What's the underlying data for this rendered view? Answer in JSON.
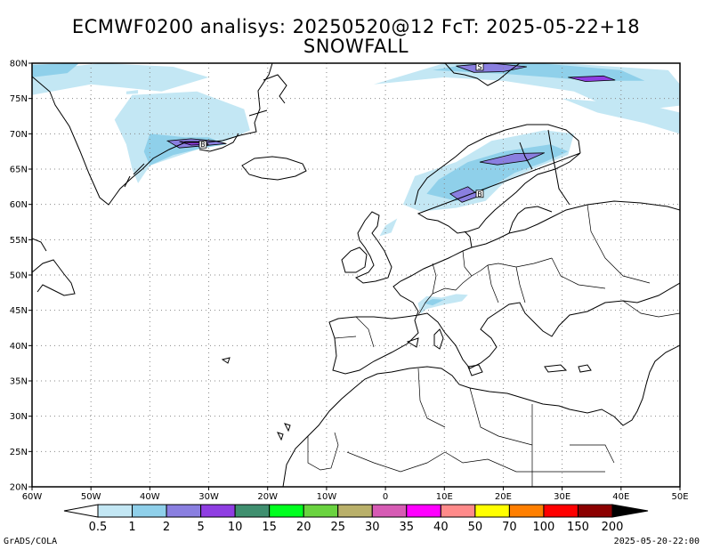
{
  "title_line1": "ECMWF0200 analisys: 20250520@12 FcT: 2025-05-22+18",
  "title_line2": "SNOWFALL",
  "footer_left": "GrADS/COLA",
  "footer_right": "2025-05-20-22:00",
  "map": {
    "lon_range": [
      -60,
      50
    ],
    "lat_range": [
      20,
      80
    ],
    "lat_ticks": [
      {
        "value": 80,
        "label": "80N"
      },
      {
        "value": 75,
        "label": "75N"
      },
      {
        "value": 70,
        "label": "70N"
      },
      {
        "value": 65,
        "label": "65N"
      },
      {
        "value": 60,
        "label": "60N"
      },
      {
        "value": 55,
        "label": "55N"
      },
      {
        "value": 50,
        "label": "50N"
      },
      {
        "value": 45,
        "label": "45N"
      },
      {
        "value": 40,
        "label": "40N"
      },
      {
        "value": 35,
        "label": "35N"
      },
      {
        "value": 30,
        "label": "30N"
      },
      {
        "value": 25,
        "label": "25N"
      },
      {
        "value": 20,
        "label": "20N"
      }
    ],
    "lon_ticks": [
      {
        "value": -60,
        "label": "60W"
      },
      {
        "value": -50,
        "label": "50W"
      },
      {
        "value": -40,
        "label": "40W"
      },
      {
        "value": -30,
        "label": "30W"
      },
      {
        "value": -20,
        "label": "20W"
      },
      {
        "value": -10,
        "label": "10W"
      },
      {
        "value": 0,
        "label": "0"
      },
      {
        "value": 10,
        "label": "10E"
      },
      {
        "value": 20,
        "label": "20E"
      },
      {
        "value": 30,
        "label": "30E"
      },
      {
        "value": 40,
        "label": "40E"
      },
      {
        "value": 50,
        "label": "50E"
      }
    ],
    "grid_style": "dotted",
    "snowfall_areas": [
      {
        "region": "greenland",
        "level": 1,
        "polygon": [
          [
            -60,
            79
          ],
          [
            -48,
            80
          ],
          [
            -36,
            79.5
          ],
          [
            -30,
            78
          ],
          [
            -38,
            76
          ],
          [
            -50,
            77
          ],
          [
            -60,
            75.5
          ]
        ]
      },
      {
        "region": "greenland",
        "level": 2,
        "polygon": [
          [
            -60,
            79.8
          ],
          [
            -52,
            80
          ],
          [
            -54,
            78.6
          ],
          [
            -60,
            78
          ]
        ]
      },
      {
        "region": "greenland",
        "level": 1,
        "polygon": [
          [
            -43,
            75.5
          ],
          [
            -32,
            76
          ],
          [
            -24,
            73.5
          ],
          [
            -23,
            70.5
          ],
          [
            -27,
            69
          ],
          [
            -33,
            67.5
          ],
          [
            -40,
            65.5
          ],
          [
            -42,
            63
          ],
          [
            -43,
            65
          ],
          [
            -44,
            68.5
          ],
          [
            -46,
            72
          ]
        ]
      },
      {
        "region": "greenland",
        "level": 2,
        "polygon": [
          [
            -40,
            70
          ],
          [
            -34,
            69.5
          ],
          [
            -30,
            69.5
          ],
          [
            -27,
            68.5
          ],
          [
            -31,
            68
          ],
          [
            -36,
            67
          ],
          [
            -40,
            65.5
          ],
          [
            -41,
            67.5
          ]
        ]
      },
      {
        "region": "greenland",
        "level": 3,
        "polygon": [
          [
            -37,
            69
          ],
          [
            -33,
            69.3
          ],
          [
            -29,
            69
          ],
          [
            -27,
            68.6
          ],
          [
            -31,
            68.3
          ],
          [
            -35,
            68
          ]
        ]
      },
      {
        "region": "greenland",
        "level": 4,
        "polygon": [
          [
            -35,
            68.9
          ],
          [
            -31,
            68.9
          ],
          [
            -30,
            68.5
          ],
          [
            -33,
            68.4
          ]
        ]
      },
      {
        "region": "greenland",
        "level": 1,
        "polygon": [
          [
            -44,
            76
          ],
          [
            -42,
            76.2
          ],
          [
            -42,
            75.7
          ],
          [
            -44,
            75.6
          ]
        ]
      },
      {
        "region": "svalbard",
        "level": 1,
        "polygon": [
          [
            -2,
            77
          ],
          [
            10,
            80
          ],
          [
            30,
            80
          ],
          [
            48,
            79
          ],
          [
            50,
            77
          ],
          [
            50,
            74
          ],
          [
            40,
            73
          ],
          [
            32,
            76
          ],
          [
            20,
            77.5
          ],
          [
            10,
            78
          ]
        ]
      },
      {
        "region": "svalbard",
        "level": 2,
        "polygon": [
          [
            8,
            79
          ],
          [
            15,
            80
          ],
          [
            26,
            80
          ],
          [
            40,
            79
          ],
          [
            44,
            77.5
          ],
          [
            35,
            77.5
          ],
          [
            28,
            78
          ],
          [
            20,
            78.5
          ]
        ]
      },
      {
        "region": "svalbard",
        "level": 3,
        "polygon": [
          [
            12,
            79.6
          ],
          [
            18,
            80
          ],
          [
            24,
            79.5
          ],
          [
            20,
            78.8
          ],
          [
            15,
            78.7
          ]
        ]
      },
      {
        "region": "svalbard",
        "level": 4,
        "polygon": [
          [
            31,
            78
          ],
          [
            37,
            78.2
          ],
          [
            39,
            77.6
          ],
          [
            34,
            77.4
          ]
        ]
      },
      {
        "region": "barents",
        "level": 1,
        "polygon": [
          [
            30,
            75
          ],
          [
            45,
            74
          ],
          [
            50,
            73
          ],
          [
            50,
            70
          ],
          [
            44,
            71.5
          ],
          [
            36,
            73
          ]
        ]
      },
      {
        "region": "scandinavia",
        "level": 1,
        "polygon": [
          [
            4,
            62
          ],
          [
            5,
            64
          ],
          [
            12,
            66
          ],
          [
            18,
            69
          ],
          [
            27,
            70.5
          ],
          [
            32,
            70
          ],
          [
            31,
            67
          ],
          [
            25,
            65
          ],
          [
            20,
            63
          ],
          [
            17,
            60.5
          ],
          [
            12,
            59.5
          ],
          [
            6,
            59
          ],
          [
            3,
            60
          ]
        ]
      },
      {
        "region": "scandinavia",
        "level": 2,
        "polygon": [
          [
            7,
            61.5
          ],
          [
            9,
            63.5
          ],
          [
            14,
            66
          ],
          [
            20,
            67.5
          ],
          [
            28,
            68.5
          ],
          [
            31,
            67.5
          ],
          [
            27,
            66
          ],
          [
            22,
            64.5
          ],
          [
            17,
            62
          ],
          [
            12,
            60.5
          ]
        ]
      },
      {
        "region": "scandinavia",
        "level": 3,
        "polygon": [
          [
            11,
            61.5
          ],
          [
            14,
            62.5
          ],
          [
            16,
            61.2
          ],
          [
            13,
            60.3
          ]
        ]
      },
      {
        "region": "scandinavia",
        "level": 3,
        "polygon": [
          [
            16,
            66
          ],
          [
            22,
            67.2
          ],
          [
            27,
            67.3
          ],
          [
            24,
            66.2
          ],
          [
            19,
            65.6
          ]
        ]
      },
      {
        "region": "scandinavia",
        "level": 1,
        "polygon": [
          [
            0,
            57
          ],
          [
            2,
            58
          ],
          [
            1,
            56
          ],
          [
            -1,
            55.5
          ]
        ]
      },
      {
        "region": "alps",
        "level": 1,
        "polygon": [
          [
            5.5,
            46
          ],
          [
            7,
            47
          ],
          [
            9.5,
            46.8
          ],
          [
            12,
            47.3
          ],
          [
            14,
            47.2
          ],
          [
            13,
            46.3
          ],
          [
            10,
            45.8
          ],
          [
            7,
            45.2
          ],
          [
            6,
            44.5
          ]
        ]
      },
      {
        "region": "alps",
        "level": 2,
        "polygon": [
          [
            6.5,
            46
          ],
          [
            8,
            46.6
          ],
          [
            10,
            46.5
          ],
          [
            8,
            45.7
          ]
        ]
      }
    ],
    "site_markers": [
      {
        "label": "B",
        "lon": -31,
        "lat": 68.5
      },
      {
        "label": "B",
        "lon": 16,
        "lat": 61.5
      },
      {
        "label": "S",
        "lon": 16,
        "lat": 79.5
      }
    ]
  },
  "colorbar": {
    "labels": [
      "0.5",
      "1",
      "2",
      "5",
      "10",
      "15",
      "20",
      "25",
      "30",
      "35",
      "40",
      "50",
      "70",
      "100",
      "150",
      "200"
    ],
    "colors": [
      "#ffffff",
      "#c3e7f4",
      "#8fd0ea",
      "#8a7fe0",
      "#8f3ee2",
      "#3f8f6f",
      "#00ff1f",
      "#6ad33f",
      "#b9b06a",
      "#d65bb4",
      "#ff00ff",
      "#ff8a8a",
      "#ffff00",
      "#ff7f00",
      "#ff0000",
      "#8b0000",
      "#000000"
    ]
  }
}
